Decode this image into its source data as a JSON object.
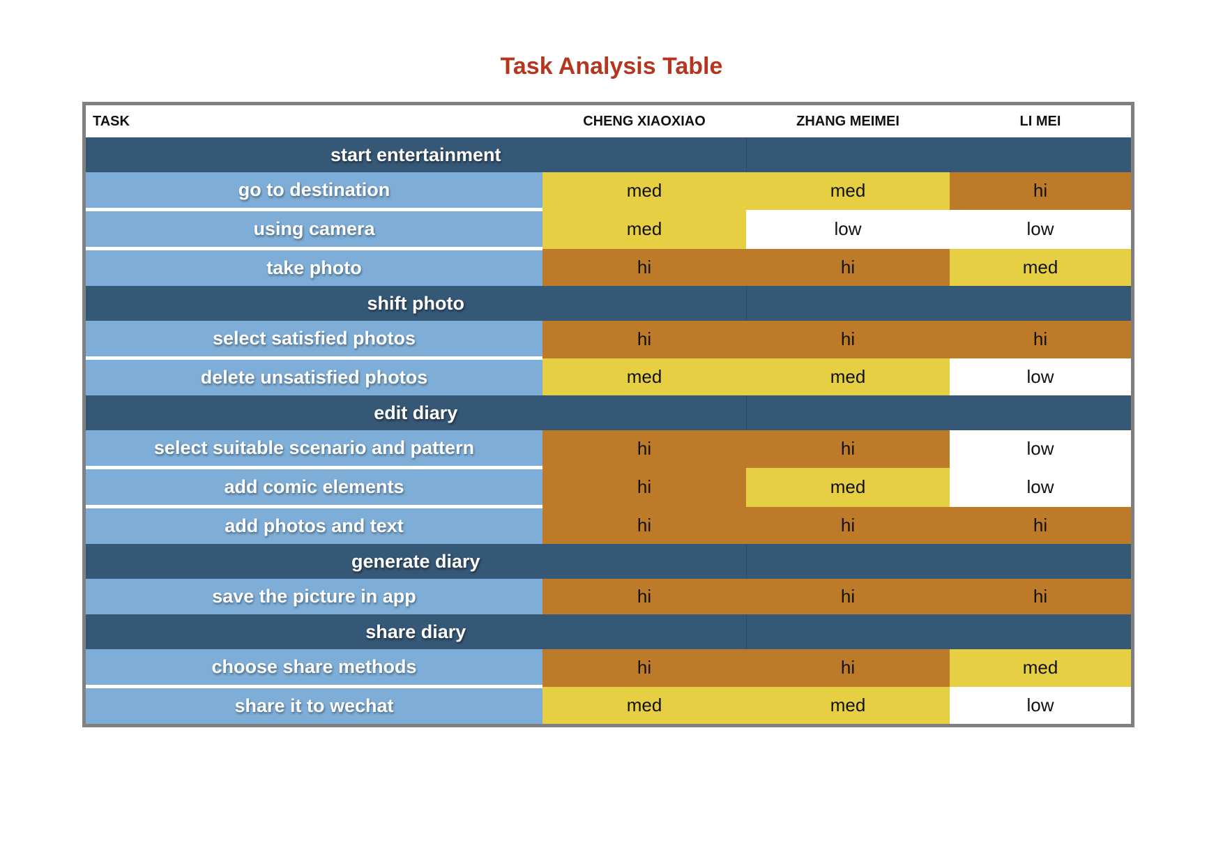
{
  "title": "Task Analysis Table",
  "colors": {
    "title": "#b5351e",
    "section_bg": "#355877",
    "task_bg": "#7eaed8",
    "hi": "#bd7b2a",
    "med": "#e7cf43",
    "low": "#ffffff",
    "frame": "#808080"
  },
  "table": {
    "headers": [
      "TASK",
      "CHENG XIAOXIAO",
      "ZHANG MEIMEI",
      "LI MEI"
    ],
    "rows": [
      {
        "kind": "section",
        "label": "start entertainment"
      },
      {
        "kind": "task",
        "label": "go to destination",
        "values": [
          "med",
          "med",
          "hi"
        ]
      },
      {
        "kind": "task",
        "label": "using camera",
        "values": [
          "med",
          "low",
          "low"
        ]
      },
      {
        "kind": "task",
        "label": "take photo",
        "values": [
          "hi",
          "hi",
          "med"
        ]
      },
      {
        "kind": "section",
        "label": "shift photo"
      },
      {
        "kind": "task",
        "label": "select satisfied photos",
        "values": [
          "hi",
          "hi",
          "hi"
        ]
      },
      {
        "kind": "task",
        "label": "delete unsatisfied photos",
        "values": [
          "med",
          "med",
          "low"
        ]
      },
      {
        "kind": "section",
        "label": "edit diary"
      },
      {
        "kind": "task",
        "label": "select suitable scenario and pattern",
        "values": [
          "hi",
          "hi",
          "low"
        ]
      },
      {
        "kind": "task",
        "label": "add comic elements",
        "values": [
          "hi",
          "med",
          "low"
        ]
      },
      {
        "kind": "task",
        "label": "add photos and text",
        "values": [
          "hi",
          "hi",
          "hi"
        ]
      },
      {
        "kind": "section",
        "label": "generate diary"
      },
      {
        "kind": "task",
        "label": "save the picture in app",
        "values": [
          "hi",
          "hi",
          "hi"
        ]
      },
      {
        "kind": "section",
        "label": "share diary"
      },
      {
        "kind": "task",
        "label": "choose share methods",
        "values": [
          "hi",
          "hi",
          "med"
        ]
      },
      {
        "kind": "task",
        "label": "share it to wechat",
        "values": [
          "med",
          "med",
          "low"
        ]
      }
    ]
  }
}
